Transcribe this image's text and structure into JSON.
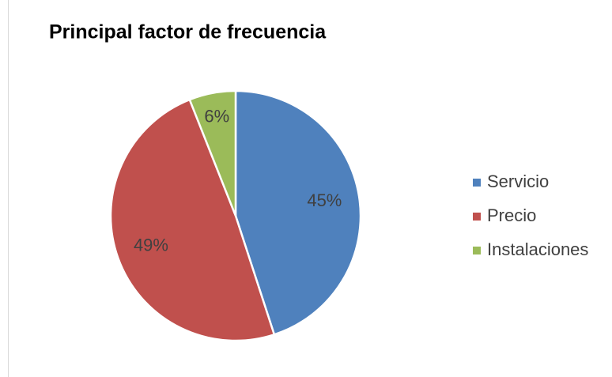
{
  "chart_data": {
    "type": "pie",
    "title": "Principal factor de frecuencia",
    "categories": [
      "Servicio",
      "Precio",
      "Instalaciones"
    ],
    "values": [
      45,
      49,
      6
    ],
    "value_labels": [
      "45%",
      "49%",
      "6%"
    ],
    "colors": [
      "#4f81bd",
      "#c0504d",
      "#9bbb59"
    ],
    "legend": "right"
  }
}
